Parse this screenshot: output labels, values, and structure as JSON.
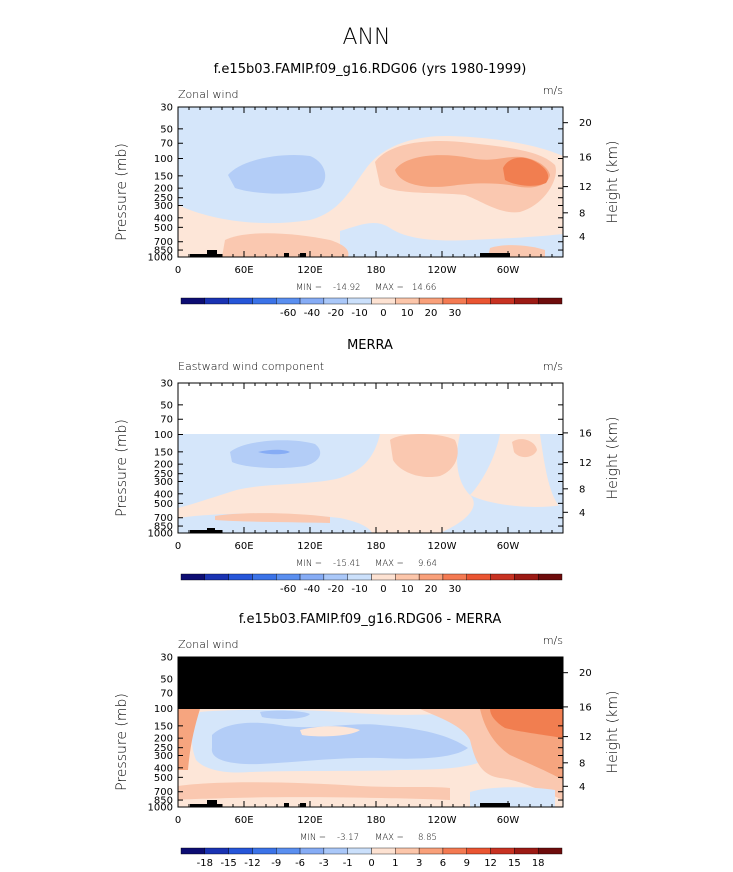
{
  "page_title": "ANN",
  "chart_data": [
    {
      "type": "heatmap",
      "title": "f.e15b03.FAMIP.f09_g16.RDG06 (yrs 1980-1999)",
      "variable": "Zonal wind",
      "units": "m/s",
      "ylabel": "Pressure (mb)",
      "ylabel_right": "Height (km)",
      "x_ticks": [
        "0",
        "60E",
        "120E",
        "180",
        "120W",
        "60W"
      ],
      "y_ticks": [
        "30",
        "50",
        "70",
        "100",
        "150",
        "200",
        "250",
        "300",
        "400",
        "500",
        "700",
        "850",
        "1000"
      ],
      "height_ticks": [
        "20",
        "16",
        "12",
        "8",
        "4"
      ],
      "min_label": "MIN = ",
      "min_value": "-14.92",
      "max_label": "MAX = ",
      "max_value": "14.66",
      "colorbar_labels": [
        "-60",
        "-40",
        "-20",
        "-10",
        "0",
        "10",
        "20",
        "30"
      ]
    },
    {
      "type": "heatmap",
      "title": "MERRA",
      "variable": "Eastward wind component",
      "units": "m/s",
      "ylabel": "Pressure (mb)",
      "ylabel_right": "Height (km)",
      "x_ticks": [
        "0",
        "60E",
        "120E",
        "180",
        "120W",
        "60W"
      ],
      "y_ticks": [
        "30",
        "50",
        "70",
        "100",
        "150",
        "200",
        "250",
        "300",
        "400",
        "500",
        "700",
        "850",
        "1000"
      ],
      "height_ticks": [
        "16",
        "12",
        "8",
        "4"
      ],
      "min_label": "MIN = ",
      "min_value": "-15.41",
      "max_label": "MAX = ",
      "max_value": "9.64",
      "colorbar_labels": [
        "-60",
        "-40",
        "-20",
        "-10",
        "0",
        "10",
        "20",
        "30"
      ]
    },
    {
      "type": "heatmap",
      "title": "f.e15b03.FAMIP.f09_g16.RDG06 - MERRA",
      "variable": "Zonal wind",
      "units": "m/s",
      "ylabel": "Pressure (mb)",
      "ylabel_right": "Height (km)",
      "x_ticks": [
        "0",
        "60E",
        "120E",
        "180",
        "120W",
        "60W"
      ],
      "y_ticks": [
        "30",
        "50",
        "70",
        "100",
        "150",
        "200",
        "250",
        "300",
        "400",
        "500",
        "700",
        "850",
        "1000"
      ],
      "height_ticks": [
        "20",
        "16",
        "12",
        "8",
        "4"
      ],
      "min_label": "MIN = ",
      "min_value": "-3.17",
      "max_label": "MAX = ",
      "max_value": "8.85",
      "colorbar_labels": [
        "-18",
        "-15",
        "-12",
        "-9",
        "-6",
        "-3",
        "-1",
        "0",
        "1",
        "3",
        "6",
        "9",
        "12",
        "15",
        "18"
      ]
    }
  ],
  "colors": {
    "colorbar": [
      "#0d0d73",
      "#1a33b3",
      "#2656d9",
      "#3b73e8",
      "#5a8ff0",
      "#86acf5",
      "#aac8f9",
      "#cbe0fb",
      "#fde2d2",
      "#fcc6aa",
      "#f9a07a",
      "#f47a52",
      "#ea5532",
      "#c83222",
      "#9c1a14",
      "#6e0c0c"
    ],
    "neg_light": "#d5e6fa",
    "neg_mid": "#b3cdf7",
    "neg_dark": "#93b2f2",
    "pos_light": "#fde6d8",
    "pos_mid": "#fac8b0",
    "pos_dark": "#f6a57f",
    "pos_strong": "#f17e50",
    "masked": "#000000"
  }
}
